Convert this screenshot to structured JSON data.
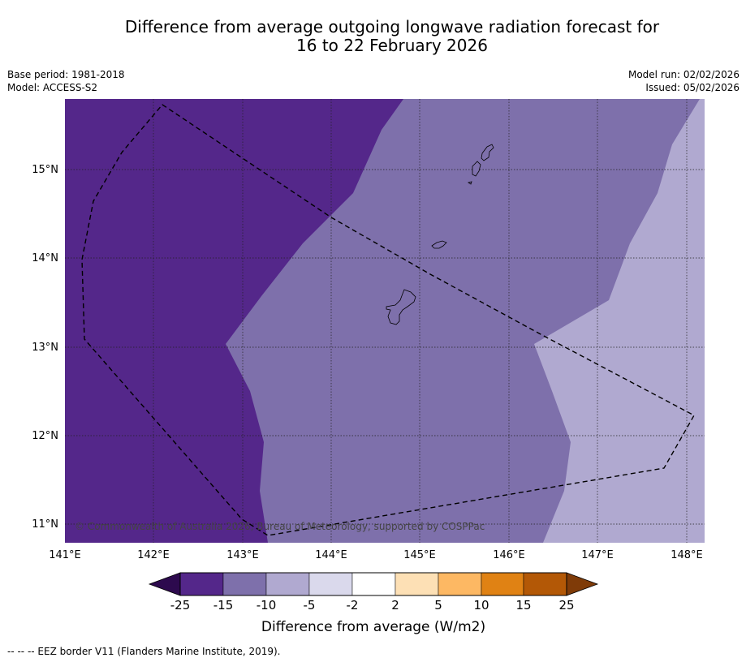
{
  "title": {
    "line1": "Difference from average outgoing longwave radiation forecast for",
    "line2": "16 to 22 February 2026"
  },
  "meta_left": {
    "base_period": "Base period: 1981-2018",
    "model": "Model: ACCESS-S2"
  },
  "meta_right": {
    "model_run": "Model run: 02/02/2026",
    "issued": "Issued: 05/02/2026"
  },
  "map": {
    "lon_range": [
      141,
      148.2
    ],
    "lat_range": [
      10.8,
      15.8
    ],
    "lon_ticks": [
      "141°E",
      "142°E",
      "143°E",
      "144°E",
      "145°E",
      "146°E",
      "147°E",
      "148°E"
    ],
    "lat_ticks": [
      "15°N",
      "14°N",
      "13°N",
      "12°N",
      "11°N"
    ],
    "copyright": "© Commonwealth of Australia 2026, Bureau of Meteorology, supported by COSPPac"
  },
  "colorbar": {
    "label": "Difference from average (W/m2)",
    "ticks": [
      "-25",
      "-15",
      "-10",
      "-5",
      "-2",
      "2",
      "5",
      "10",
      "15",
      "25"
    ],
    "colors": [
      "#2d0a4e",
      "#54278a",
      "#7e70ab",
      "#b0a9d0",
      "#dad9ec",
      "#ffffff",
      "#fde0b5",
      "#fdb863",
      "#e08214",
      "#b35806",
      "#7f3b08"
    ]
  },
  "footnote": "--  --  -- EEZ border V11 (Flanders Marine Institute, 2019)."
}
